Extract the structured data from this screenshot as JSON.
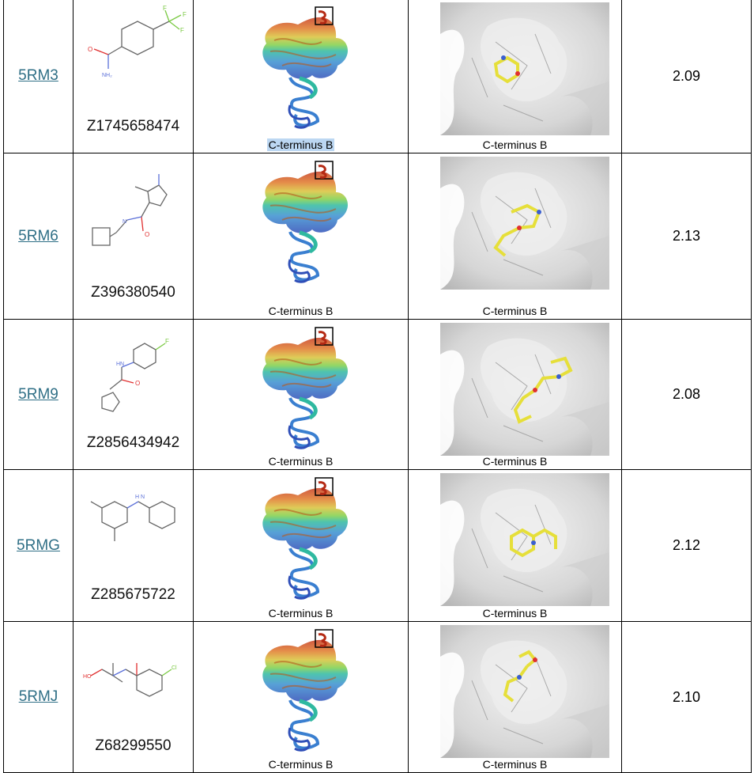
{
  "caption": "C-terminus B",
  "rows": [
    {
      "pdb": "5RM3",
      "compound": "Z1745658474",
      "resolution": "2.09",
      "caption_highlight": true
    },
    {
      "pdb": "5RM6",
      "compound": "Z396380540",
      "resolution": "2.13",
      "caption_highlight": false
    },
    {
      "pdb": "5RM9",
      "compound": "Z2856434942",
      "resolution": "2.08",
      "caption_highlight": false
    },
    {
      "pdb": "5RMG",
      "compound": "Z285675722",
      "resolution": "2.12",
      "caption_highlight": false
    },
    {
      "pdb": "5RMJ",
      "compound": "Z68299550",
      "resolution": "2.10",
      "caption_highlight": false
    }
  ],
  "colors": {
    "link": "#2f6f86",
    "highlight": "#bcd7f2",
    "ligand": "#e6df3a",
    "surface": "#d9d9d9"
  },
  "icons": [
    "chemical-structure",
    "protein-ribbon",
    "ligand-binding-surface"
  ]
}
